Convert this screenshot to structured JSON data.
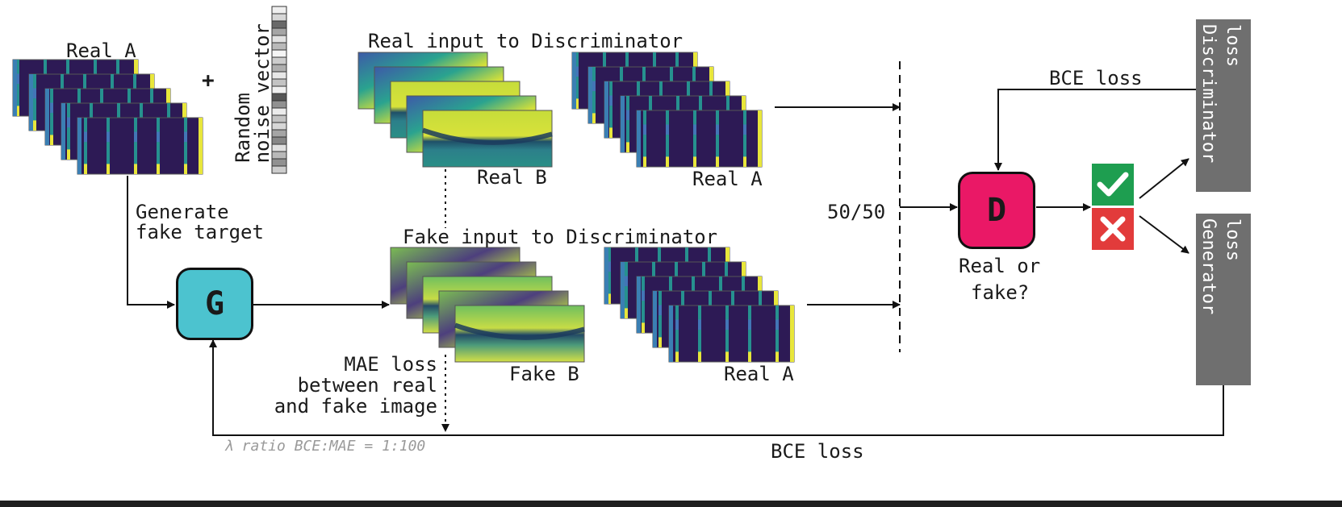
{
  "labels": {
    "real_a_top": "Real A",
    "noise_line1": "Random",
    "noise_line2": "noise vector",
    "plus": "+",
    "generate_line1": "Generate",
    "generate_line2": "fake target",
    "real_input_title": "Real input to Discriminator",
    "real_b": "Real B",
    "real_a_mid": "Real A",
    "fake_input_title": "Fake input to Discriminator",
    "fake_b": "Fake B",
    "real_a_bottom": "Real A",
    "mae_line1": "MAE loss",
    "mae_line2": "between real",
    "mae_line3": "and fake image",
    "lambda_ratio": "λ ratio BCE:MAE = 1:100",
    "bce_bottom": "BCE loss",
    "bce_top": "BCE loss",
    "split": "50/50",
    "generator": "G",
    "discriminator": "D",
    "d_question_line1": "Real or",
    "d_question_line2": "fake?",
    "disc_loss_line1": "Discriminator",
    "disc_loss_line2": "loss",
    "gen_loss_line1": "Generator",
    "gen_loss_line2": "loss"
  },
  "icons": {
    "check": "check-icon",
    "cross": "cross-icon"
  },
  "colors": {
    "generator": "#4cc3cf",
    "discriminator": "#ea1866",
    "check": "#1e9e50",
    "cross": "#e23b3b",
    "loss_bar": "#6f6f6f",
    "viridis_dark": "#2d1a55",
    "viridis_teal": "#26a79a",
    "viridis_yellow": "#e8e63b"
  },
  "noise_vector": [
    0.08,
    0.2,
    0.75,
    0.45,
    0.15,
    0.35,
    0.05,
    0.25,
    0.4,
    0.12,
    0.3,
    0.08,
    0.85,
    0.55,
    0.1,
    0.3,
    0.2,
    0.45,
    0.6,
    0.15,
    0.35,
    0.55,
    0.25
  ]
}
